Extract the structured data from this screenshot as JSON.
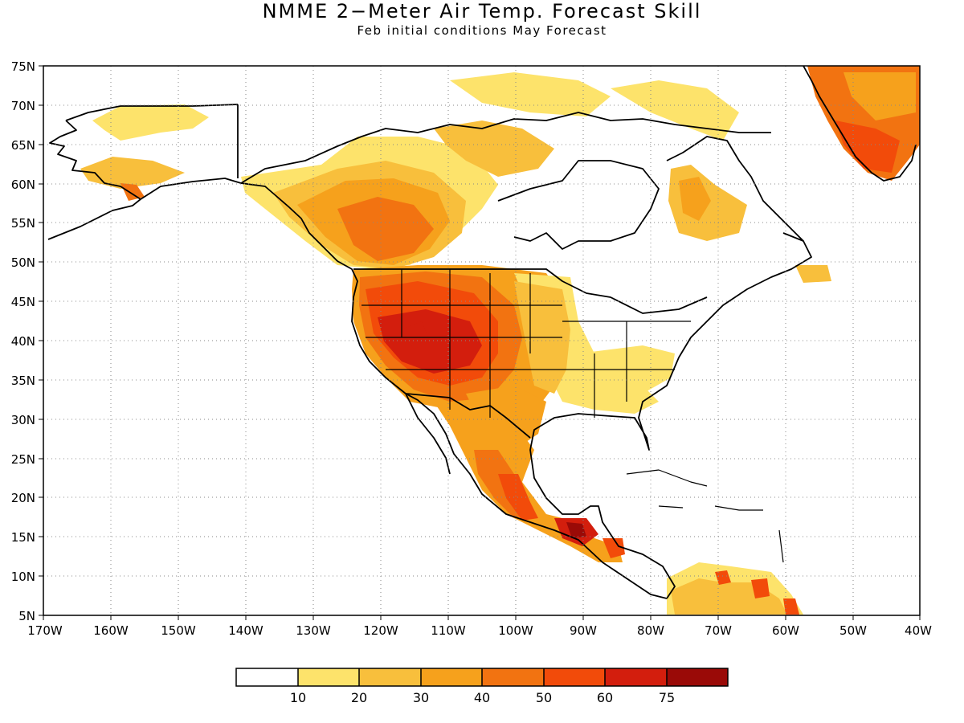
{
  "title": "NMME 2−Meter Air Temp. Forecast Skill",
  "subtitle": "Feb initial conditions   May Forecast",
  "map": {
    "lon_range": [
      -170,
      -40
    ],
    "lat_range": [
      5,
      75
    ],
    "lat_ticks": [
      "75N",
      "70N",
      "65N",
      "60N",
      "55N",
      "50N",
      "45N",
      "40N",
      "35N",
      "30N",
      "25N",
      "20N",
      "15N",
      "10N",
      "5N"
    ],
    "lon_ticks": [
      "170W",
      "160W",
      "150W",
      "140W",
      "130W",
      "120W",
      "110W",
      "100W",
      "90W",
      "80W",
      "70W",
      "60W",
      "50W",
      "40W"
    ],
    "grid": "dotted",
    "ocean_color": "#ffffff",
    "coastline_color": "#000000"
  },
  "colorbar": {
    "colors": [
      "#ffffff",
      "#fde36b",
      "#f8bf3c",
      "#f6a11c",
      "#f27311",
      "#f24b0a",
      "#d31e0d",
      "#9a0a07"
    ],
    "labels": [
      "10",
      "20",
      "30",
      "40",
      "50",
      "60",
      "75"
    ]
  }
}
